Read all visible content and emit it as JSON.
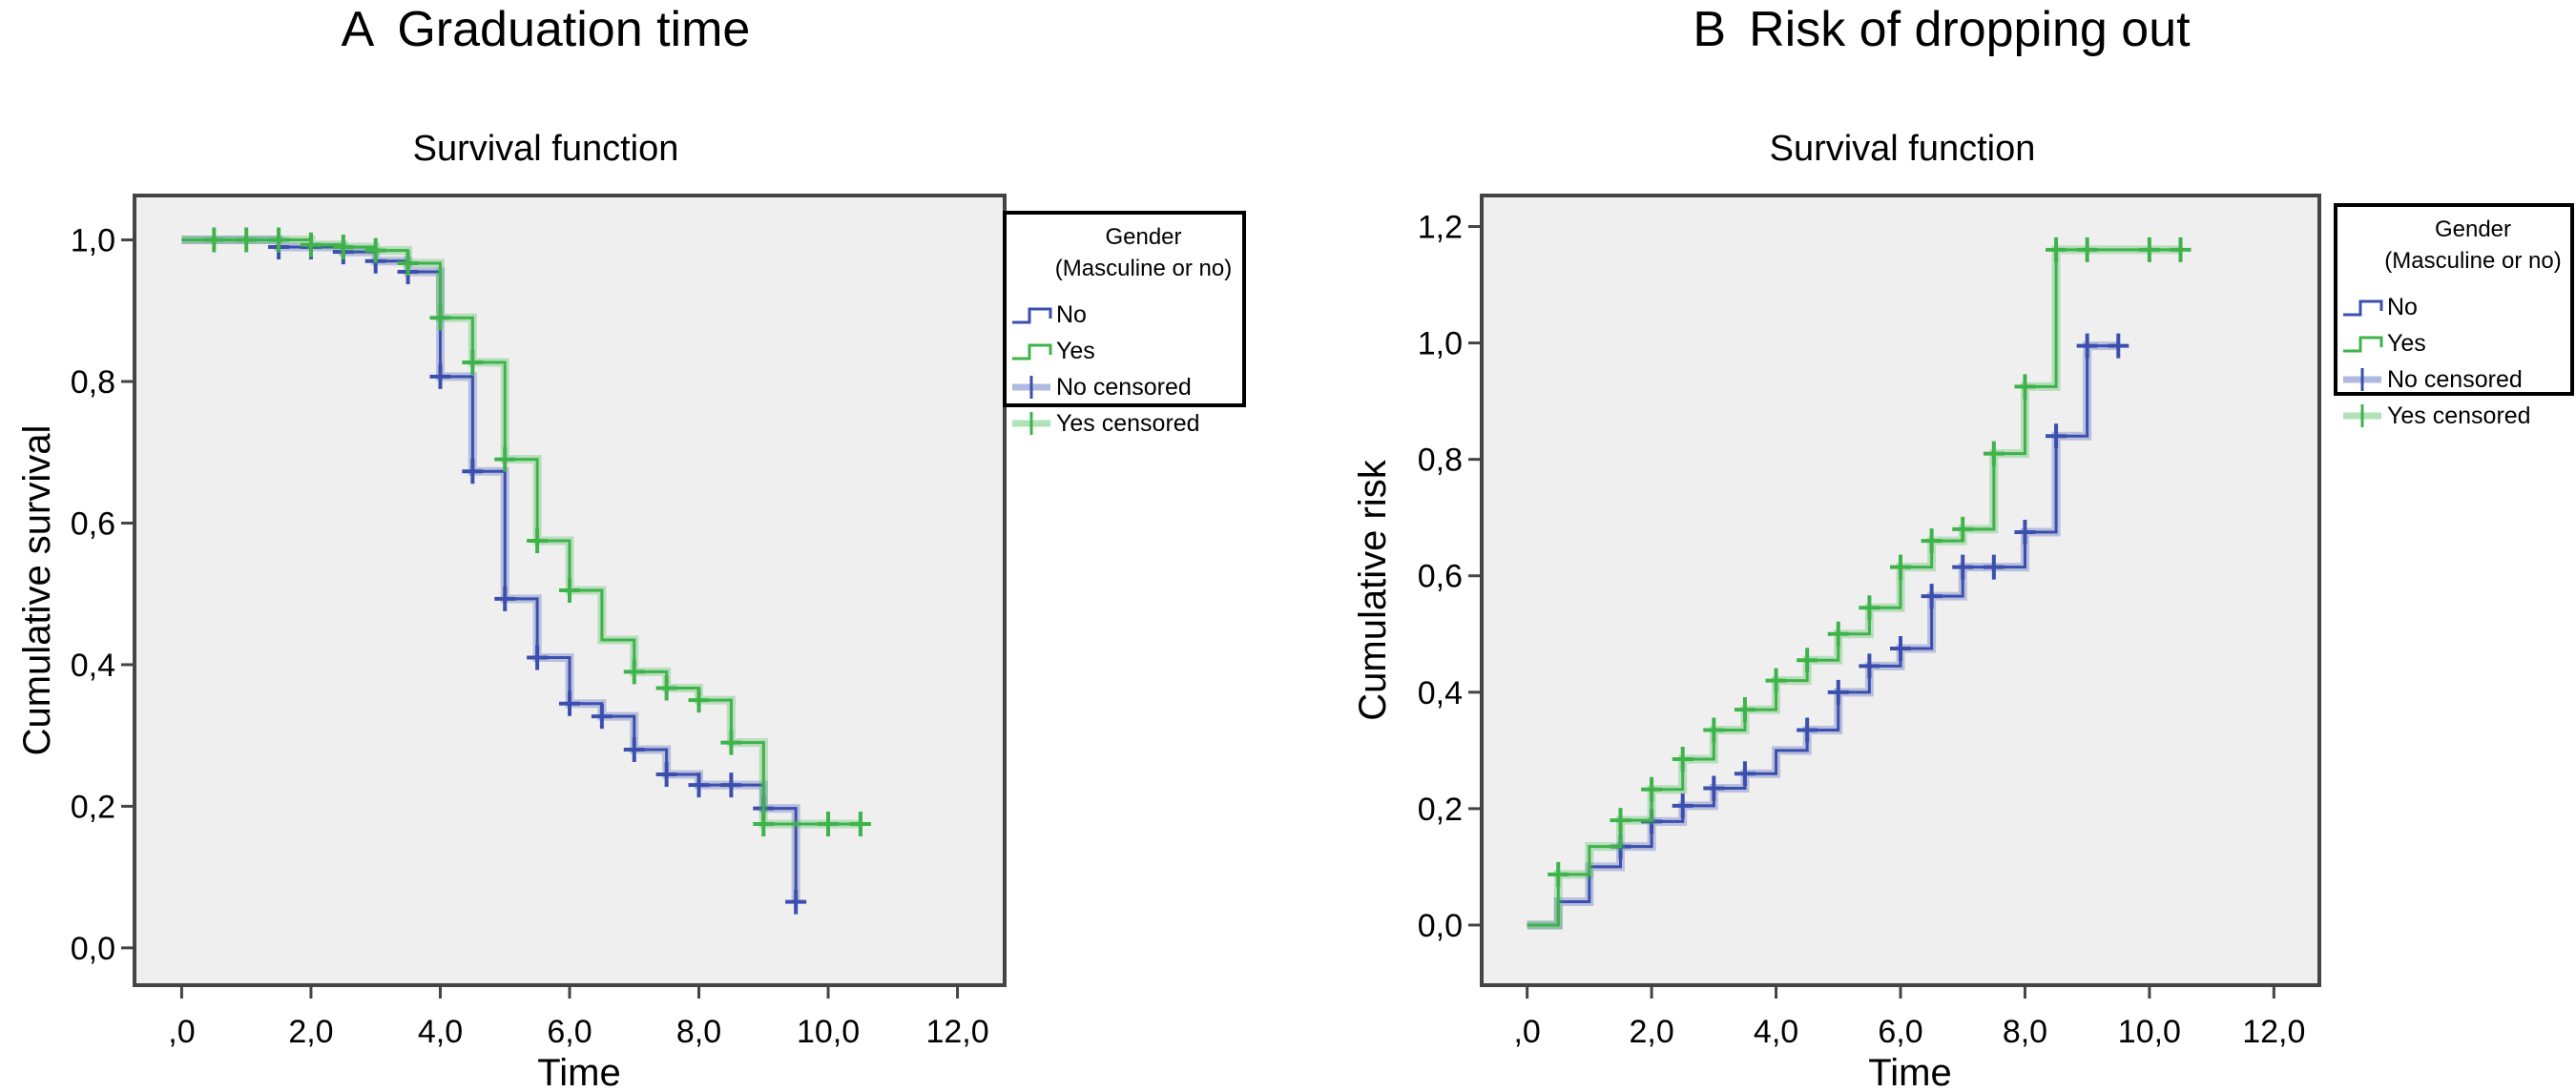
{
  "colors": {
    "no": "#3a4fae",
    "yes": "#3db34a",
    "plot_bg": "#efefef",
    "frame": "#444444"
  },
  "chart_data": [
    {
      "type": "line",
      "step": true,
      "panel_label": "A",
      "title": "Graduation time",
      "subtitle": "Survival function",
      "xlabel": "Time",
      "ylabel": "Cumulative survival",
      "xlim": [
        -0.7,
        12.7
      ],
      "ylim": [
        -0.05,
        1.06
      ],
      "xticks": [
        0,
        2,
        4,
        6,
        8,
        10,
        12
      ],
      "xtick_labels": [
        ",0",
        "2,0",
        "4,0",
        "6,0",
        "8,0",
        "10,0",
        "12,0"
      ],
      "yticks": [
        0,
        0.2,
        0.4,
        0.6,
        0.8,
        1.0
      ],
      "ytick_labels": [
        "0,0",
        "0,2",
        "0,4",
        "0,6",
        "0,8",
        "1,0"
      ],
      "grid": false,
      "legend": {
        "placement": "right",
        "title_line1": "Gender",
        "title_line2": "(Masculine or no)",
        "entries": [
          "No",
          "Yes",
          "No censored",
          "Yes censored"
        ]
      },
      "series": [
        {
          "name": "No",
          "color_key": "no",
          "end": 9.5,
          "drop_to_end": true,
          "steps": [
            [
              0,
              1.0
            ],
            [
              1.5,
              0.99
            ],
            [
              2.5,
              0.983
            ],
            [
              3.0,
              0.97
            ],
            [
              3.5,
              0.955
            ],
            [
              4.0,
              0.807
            ],
            [
              4.5,
              0.673
            ],
            [
              5.0,
              0.493
            ],
            [
              5.5,
              0.41
            ],
            [
              6.0,
              0.345
            ],
            [
              6.5,
              0.327
            ],
            [
              7.0,
              0.28
            ],
            [
              7.5,
              0.245
            ],
            [
              8.0,
              0.23
            ],
            [
              9.0,
              0.197
            ],
            [
              9.5,
              0.065
            ]
          ],
          "censored": [
            1.5,
            2.0,
            2.5,
            3.0,
            3.5,
            4.0,
            4.5,
            5.0,
            5.5,
            6.0,
            6.5,
            7.0,
            7.5,
            8.0,
            8.5,
            9.0,
            9.5
          ]
        },
        {
          "name": "Yes",
          "color_key": "yes",
          "end": 10.5,
          "steps": [
            [
              0,
              1.0
            ],
            [
              2.0,
              0.993
            ],
            [
              2.5,
              0.99
            ],
            [
              3.0,
              0.985
            ],
            [
              3.5,
              0.967
            ],
            [
              4.0,
              0.89
            ],
            [
              4.5,
              0.827
            ],
            [
              5.0,
              0.69
            ],
            [
              5.5,
              0.575
            ],
            [
              6.0,
              0.505
            ],
            [
              6.5,
              0.435
            ],
            [
              7.0,
              0.39
            ],
            [
              7.5,
              0.367
            ],
            [
              8.0,
              0.35
            ],
            [
              8.5,
              0.29
            ],
            [
              9.0,
              0.175
            ]
          ],
          "censored": [
            0.5,
            1.0,
            1.5,
            2.0,
            2.5,
            3.0,
            3.5,
            4.0,
            4.5,
            5.0,
            5.5,
            6.0,
            7.0,
            7.5,
            8.0,
            8.5,
            9.0,
            10.0,
            10.5
          ]
        }
      ]
    },
    {
      "type": "line",
      "step": true,
      "panel_label": "B",
      "title": "Risk of dropping out",
      "subtitle": "Survival function",
      "xlabel": "Time",
      "ylabel": "Cumulative risk",
      "xlim": [
        -0.7,
        12.7
      ],
      "ylim": [
        -0.1,
        1.25
      ],
      "xticks": [
        0,
        2,
        4,
        6,
        8,
        10,
        12
      ],
      "xtick_labels": [
        ",0",
        "2,0",
        "4,0",
        "6,0",
        "8,0",
        "10,0",
        "12,0"
      ],
      "yticks": [
        0,
        0.2,
        0.4,
        0.6,
        0.8,
        1.0,
        1.2
      ],
      "ytick_labels": [
        "0,0",
        "0,2",
        "0,4",
        "0,6",
        "0,8",
        "1,0",
        "1,2"
      ],
      "grid": false,
      "legend": {
        "placement": "right",
        "title_line1": "Gender",
        "title_line2": "(Masculine or no)",
        "entries": [
          "No",
          "Yes",
          "No censored",
          "Yes censored"
        ]
      },
      "series": [
        {
          "name": "No",
          "color_key": "no",
          "end": 9.5,
          "steps": [
            [
              0,
              0
            ],
            [
              0.5,
              0.04
            ],
            [
              1.0,
              0.1
            ],
            [
              1.5,
              0.135
            ],
            [
              2.0,
              0.178
            ],
            [
              2.5,
              0.205
            ],
            [
              3.0,
              0.235
            ],
            [
              3.5,
              0.26
            ],
            [
              4.0,
              0.3
            ],
            [
              4.5,
              0.335
            ],
            [
              5.0,
              0.4
            ],
            [
              5.5,
              0.445
            ],
            [
              6.0,
              0.475
            ],
            [
              6.5,
              0.565
            ],
            [
              7.0,
              0.615
            ],
            [
              8.0,
              0.675
            ],
            [
              8.5,
              0.84
            ],
            [
              9.0,
              0.995
            ]
          ],
          "censored": [
            1.5,
            2.0,
            2.5,
            3.0,
            3.5,
            4.5,
            5.0,
            5.5,
            6.0,
            6.5,
            7.0,
            7.5,
            8.0,
            8.5,
            9.0,
            9.5
          ]
        },
        {
          "name": "Yes",
          "color_key": "yes",
          "end": 10.5,
          "steps": [
            [
              0,
              0
            ],
            [
              0.5,
              0.087
            ],
            [
              1.0,
              0.135
            ],
            [
              1.5,
              0.18
            ],
            [
              2.0,
              0.233
            ],
            [
              2.5,
              0.285
            ],
            [
              3.0,
              0.335
            ],
            [
              3.5,
              0.37
            ],
            [
              4.0,
              0.42
            ],
            [
              4.5,
              0.455
            ],
            [
              5.0,
              0.5
            ],
            [
              5.5,
              0.545
            ],
            [
              6.0,
              0.615
            ],
            [
              6.5,
              0.66
            ],
            [
              7.0,
              0.68
            ],
            [
              7.5,
              0.81
            ],
            [
              8.0,
              0.925
            ],
            [
              8.5,
              1.16
            ]
          ],
          "censored": [
            0.5,
            1.5,
            2.0,
            2.5,
            3.0,
            3.5,
            4.0,
            4.5,
            5.0,
            5.5,
            6.0,
            6.5,
            7.0,
            7.5,
            8.0,
            8.5,
            9.0,
            10.0,
            10.5
          ]
        }
      ]
    }
  ]
}
